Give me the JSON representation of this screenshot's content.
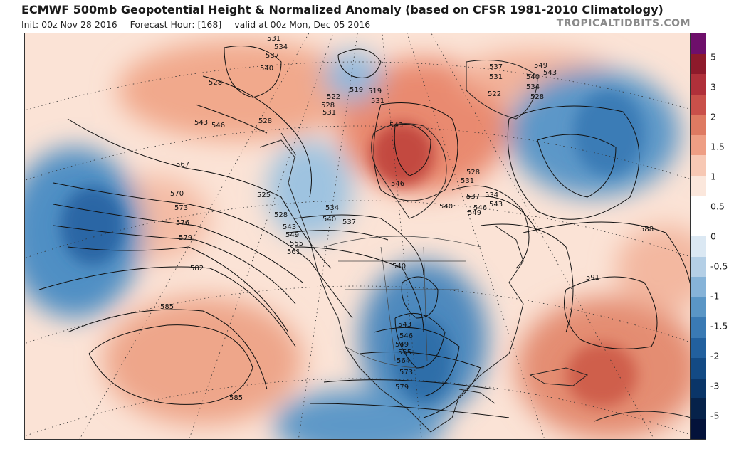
{
  "header": {
    "title": "ECMWF 500mb Geopotential Height & Normalized Anomaly (based on CFSR 1981-2010 Climatology)",
    "init": "Init: 00z Nov 28 2016",
    "forecast_hour": "Forecast Hour: [168]",
    "valid": "valid at 00z Mon, Dec 05 2016",
    "source": "TROPICALTIDBITS.COM"
  },
  "colorbar": {
    "labels": [
      "5",
      "3",
      "2",
      "1.5",
      "1",
      "0.5",
      "0",
      "-0.5",
      "-1",
      "-1.5",
      "-2",
      "-3",
      "-5"
    ],
    "colors": [
      "#6e0f6b",
      "#8e1a2b",
      "#b0303a",
      "#c9504a",
      "#de7a62",
      "#ee9e84",
      "#f7c8b4",
      "#fbe7dc",
      "#ffffff",
      "#ffffff",
      "#dbe8f3",
      "#b4cfe6",
      "#86b3d8",
      "#5a96c6",
      "#3a7ab4",
      "#22609e",
      "#134a84",
      "#0a3568",
      "#06224a",
      "#03123a"
    ]
  },
  "contour_labels": [
    {
      "text": "531"
    },
    {
      "text": "534"
    },
    {
      "text": "537"
    },
    {
      "text": "540"
    },
    {
      "text": "528"
    },
    {
      "text": "543"
    },
    {
      "text": "546"
    },
    {
      "text": "528"
    },
    {
      "text": "567"
    },
    {
      "text": "570"
    },
    {
      "text": "573"
    },
    {
      "text": "576"
    },
    {
      "text": "579"
    },
    {
      "text": "582"
    },
    {
      "text": "585"
    },
    {
      "text": "585"
    },
    {
      "text": "525"
    },
    {
      "text": "528"
    },
    {
      "text": "534"
    },
    {
      "text": "540"
    },
    {
      "text": "537"
    },
    {
      "text": "543"
    },
    {
      "text": "549"
    },
    {
      "text": "555"
    },
    {
      "text": "561"
    },
    {
      "text": "522"
    },
    {
      "text": "528"
    },
    {
      "text": "531"
    },
    {
      "text": "519"
    },
    {
      "text": "519"
    },
    {
      "text": "531"
    },
    {
      "text": "543"
    },
    {
      "text": "546"
    },
    {
      "text": "537"
    },
    {
      "text": "531"
    },
    {
      "text": "540"
    },
    {
      "text": "534"
    },
    {
      "text": "528"
    },
    {
      "text": "522"
    },
    {
      "text": "549"
    },
    {
      "text": "543"
    },
    {
      "text": "528"
    },
    {
      "text": "531"
    },
    {
      "text": "537"
    },
    {
      "text": "534"
    },
    {
      "text": "540"
    },
    {
      "text": "546"
    },
    {
      "text": "543"
    },
    {
      "text": "549"
    },
    {
      "text": "540"
    },
    {
      "text": "543"
    },
    {
      "text": "546"
    },
    {
      "text": "549"
    },
    {
      "text": "555"
    },
    {
      "text": "564"
    },
    {
      "text": "573"
    },
    {
      "text": "579"
    },
    {
      "text": "588"
    },
    {
      "text": "591"
    }
  ]
}
